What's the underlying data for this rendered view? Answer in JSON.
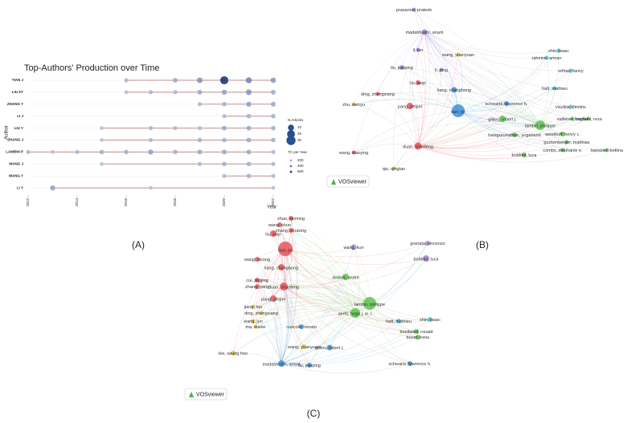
{
  "panel_labels": [
    "(A)",
    "(B)",
    "(C)"
  ],
  "chart_data": {
    "type": "bubble",
    "title": "Top-Authors' Production over Time",
    "x_label": "Year",
    "y_label": "Author",
    "categories": [
      "TIAN J",
      "LIU ZY",
      "ZHANG Y",
      "LI J",
      "LIU Y",
      "ZHANG J",
      "LAMBIN P",
      "WANG J",
      "WANG Y",
      "LI Y"
    ],
    "points": [
      {
        "x": [
          2016,
          2018,
          2019,
          2020,
          2021,
          2022
        ],
        "values": [
          3,
          5,
          8,
          22,
          10,
          7
        ]
      },
      {
        "x": [
          2016,
          2017,
          2018,
          2019,
          2020,
          2021,
          2022
        ],
        "values": [
          2,
          3,
          3,
          5,
          6,
          8,
          5
        ]
      },
      {
        "x": [
          2019,
          2020,
          2021,
          2022
        ],
        "values": [
          3,
          4,
          6,
          5
        ]
      },
      {
        "x": [
          2020,
          2021,
          2022
        ],
        "values": [
          3,
          4,
          4
        ]
      },
      {
        "x": [
          2015,
          2017,
          2018,
          2019,
          2020,
          2021,
          2022
        ],
        "values": [
          2,
          3,
          3,
          3,
          5,
          5,
          4
        ]
      },
      {
        "x": [
          2015,
          2017,
          2019,
          2020,
          2021,
          2022
        ],
        "values": [
          2,
          3,
          4,
          4,
          5,
          4
        ]
      },
      {
        "x": [
          2012,
          2013,
          2014,
          2015,
          2016,
          2017,
          2018,
          2019,
          2020,
          2021,
          2022
        ],
        "values": [
          3,
          2,
          3,
          4,
          4,
          6,
          4,
          5,
          5,
          5,
          3
        ]
      },
      {
        "x": [
          2015,
          2019,
          2020,
          2021,
          2022
        ],
        "values": [
          2,
          3,
          4,
          4,
          3
        ]
      },
      {
        "x": [
          2020,
          2021,
          2022
        ],
        "values": [
          3,
          4,
          3
        ]
      },
      {
        "x": [
          2013,
          2017,
          2022
        ],
        "values": [
          6,
          2,
          2
        ]
      }
    ],
    "xlim": [
      2011.5,
      2022
    ],
    "xticks": [
      2012,
      2014,
      2016,
      2018,
      2020,
      2022
    ],
    "size_legend_title": "N.Articles",
    "size_legend": [
      10,
      20,
      30
    ],
    "tc_legend_title": "TC per Year",
    "tc_legend": [
      200,
      400,
      600
    ],
    "line_color": "#c98a8a"
  },
  "network_b": {
    "logo": "VOSviewer",
    "nodes": [
      {
        "label": "prasanna, prateek",
        "color": "#a77fd6"
      },
      {
        "label": "madabhushi, anant",
        "color": "#a77fd6"
      },
      {
        "label": "li, jun",
        "color": "#a77fd6"
      },
      {
        "label": "liu, jianping",
        "color": "#a77fd6"
      },
      {
        "label": "li, ping",
        "color": "#a77fd6"
      },
      {
        "label": "wang, yuanyuan",
        "color": "#d8c23a"
      },
      {
        "label": "shin, isaac",
        "color": "#41c2d6"
      },
      {
        "label": "rahmim, arman",
        "color": "#41c2d6"
      },
      {
        "label": "orlhac, fanny",
        "color": "#41c2d6"
      },
      {
        "label": "liu, zaiyi",
        "color": "#e8555a"
      },
      {
        "label": "liang, changhong",
        "color": "#3d8fd6"
      },
      {
        "label": "tian, jie",
        "color": "#3d8fd6"
      },
      {
        "label": "pang, peipei",
        "color": "#e8555a"
      },
      {
        "label": "ding, zhongxiang",
        "color": "#e8555a"
      },
      {
        "label": "zhu, wenyu",
        "color": "#d8c23a"
      },
      {
        "label": "hatt, mathieu",
        "color": "#41c2d6"
      },
      {
        "label": "visvikis, dimitris",
        "color": "#41c2d6"
      },
      {
        "label": "schwartz, lawrence h.",
        "color": "#3d8fd6"
      },
      {
        "label": "gillies, robert j.",
        "color": "#5cc34a"
      },
      {
        "label": "lambin, philippe",
        "color": "#5cc34a"
      },
      {
        "label": "duan, shaofeng",
        "color": "#e8555a"
      },
      {
        "label": "wang, xiaoying",
        "color": "#e8555a"
      },
      {
        "label": "qiu, qingtao",
        "color": "#d8c23a"
      },
      {
        "label": "forghani, reza",
        "color": "#5cc34a"
      },
      {
        "label": "vallières, martin",
        "color": "#5cc34a"
      },
      {
        "label": "woodruff, henry c.",
        "color": "#5cc34a"
      },
      {
        "label": "balagurunathan, yoganand",
        "color": "#5cc34a"
      },
      {
        "label": "guckenberger, matthias",
        "color": "#5cc34a"
      },
      {
        "label": "combs, stephanie e.",
        "color": "#5cc34a"
      },
      {
        "label": "boldrini, luca",
        "color": "#5cc34a"
      },
      {
        "label": "baessler, bettina",
        "color": "#5cc34a"
      }
    ]
  },
  "network_c": {
    "logo": "VOSviewer",
    "nodes": [
      {
        "label": "tian, jie",
        "color": "#e8555a"
      },
      {
        "label": "lambin, philippe",
        "color": "#5cc34a"
      },
      {
        "label": "aerts, hugo j. w. l.",
        "color": "#5cc34a"
      },
      {
        "label": "madabhushi, anant",
        "color": "#3d8fd6"
      },
      {
        "label": "dekker, andre",
        "color": "#5cc34a"
      },
      {
        "label": "wang, kun",
        "color": "#a77fd6"
      },
      {
        "label": "boldrini, luca",
        "color": "#a77fd6"
      },
      {
        "label": "granata, vincenzo",
        "color": "#a77fd6"
      },
      {
        "label": "duan, shaofeng",
        "color": "#e8555a"
      },
      {
        "label": "pang, peipei",
        "color": "#e8555a"
      },
      {
        "label": "zhao, xinming",
        "color": "#e8555a"
      },
      {
        "label": "wang, shuo",
        "color": "#e8555a"
      },
      {
        "label": "zhang, shuixing",
        "color": "#e8555a"
      },
      {
        "label": "liu, zaiyi",
        "color": "#e8555a"
      },
      {
        "label": "liang, changhong",
        "color": "#e8555a"
      },
      {
        "label": "wang, xicong",
        "color": "#e8555a"
      },
      {
        "label": "cui, jingjing",
        "color": "#e8555a"
      },
      {
        "label": "zhang, yang",
        "color": "#e8555a"
      },
      {
        "label": "jiang, tao",
        "color": "#d8c23a"
      },
      {
        "label": "ding, zhongxiang",
        "color": "#d8c23a"
      },
      {
        "label": "wang, jun",
        "color": "#d8c23a"
      },
      {
        "label": "ma, xuelei",
        "color": "#d8c23a"
      },
      {
        "label": "lee, seung hoo",
        "color": "#d8c23a"
      },
      {
        "label": "wang, yuanyuan",
        "color": "#d8c23a"
      },
      {
        "label": "gillies, robert j.",
        "color": "#3d8fd6"
      },
      {
        "label": "cuocolo, renato",
        "color": "#3d8fd6"
      },
      {
        "label": "liu, jianping",
        "color": "#3d8fd6"
      },
      {
        "label": "schwartz, lawrence h.",
        "color": "#3d8fd6"
      },
      {
        "label": "hatt, mathieu",
        "color": "#41c2d6"
      },
      {
        "label": "shin, isaac",
        "color": "#41c2d6"
      },
      {
        "label": "boellaard, ronald",
        "color": "#5cc34a"
      },
      {
        "label": "buvat, irene",
        "color": "#5cc34a"
      }
    ]
  }
}
